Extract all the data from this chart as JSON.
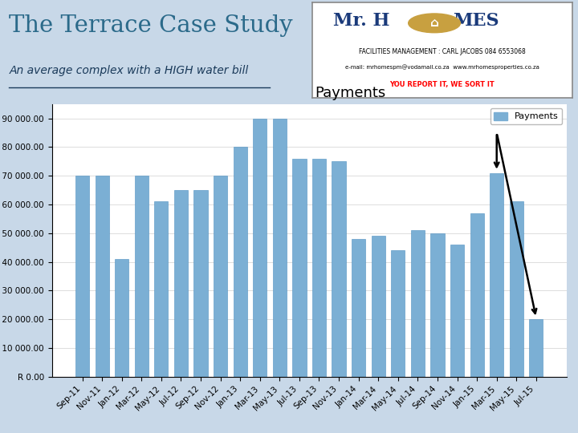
{
  "title": "Payments",
  "bar_color": "#7BAFD4",
  "page_bg": "#C8D8E8",
  "chart_bg": "#FFFFFF",
  "main_title": "The Terrace Case Study",
  "subtitle": "An average complex with a HIGH water bill",
  "categories": [
    "Sep-11",
    "Nov-11",
    "Jan-12",
    "Mar-12",
    "May-12",
    "Jul-12",
    "Sep-12",
    "Nov-12",
    "Jan-13",
    "Mar-13",
    "May-13",
    "Jul-13",
    "Sep-13",
    "Nov-13",
    "Jan-14",
    "Mar-14",
    "May-14",
    "Jul-14",
    "Sep-14",
    "Nov-14",
    "Jan-15",
    "Mar-15",
    "May-15",
    "Jul-15"
  ],
  "values": [
    70000,
    70000,
    41000,
    70000,
    61000,
    65000,
    65000,
    70000,
    80000,
    90000,
    90000,
    76000,
    76000,
    75000,
    48000,
    49000,
    44000,
    51000,
    50000,
    46000,
    57000,
    71000,
    61000,
    20000
  ],
  "legend_label": "Payments",
  "ytick_max": 90000,
  "ytick_step": 10000
}
